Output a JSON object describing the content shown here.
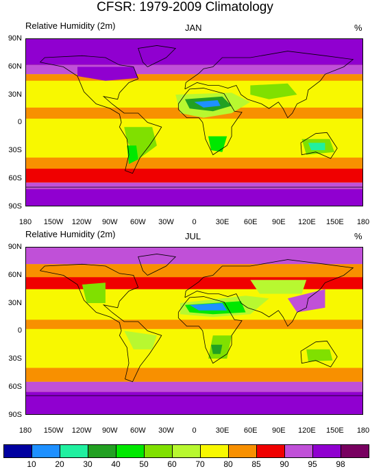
{
  "title": "CFSR: 1979-2009 Climatology",
  "panels": [
    {
      "variable": "Relative Humidity (2m)",
      "month": "JAN",
      "units": "%"
    },
    {
      "variable": "Relative Humidity (2m)",
      "month": "JUL",
      "units": "%"
    }
  ],
  "lat_ticks": [
    "90N",
    "60N",
    "30N",
    "0",
    "30S",
    "60S",
    "90S"
  ],
  "lon_ticks": [
    "180",
    "150W",
    "120W",
    "90W",
    "60W",
    "30W",
    "0",
    "30E",
    "60E",
    "90E",
    "120E",
    "150E",
    "180"
  ],
  "colorbar": {
    "colors": [
      "#0000a0",
      "#1e90ff",
      "#20f0a0",
      "#22a022",
      "#00e800",
      "#80e000",
      "#b8f830",
      "#f8f800",
      "#f89000",
      "#f00000",
      "#c050d8",
      "#9000d0",
      "#780060"
    ],
    "labels": [
      "10",
      "20",
      "30",
      "40",
      "50",
      "60",
      "70",
      "80",
      "85",
      "90",
      "95",
      "98"
    ]
  },
  "palette": {
    "yellow": "#f8f800",
    "orange": "#f89000",
    "red": "#f00000",
    "lilac": "#c050d8",
    "violet": "#9000d0",
    "purple": "#780060",
    "lime": "#80e000",
    "lightgreen": "#b8f830",
    "green": "#00e800",
    "darkgreen": "#22a022",
    "teal": "#20f0a0",
    "blue": "#1e90ff"
  }
}
